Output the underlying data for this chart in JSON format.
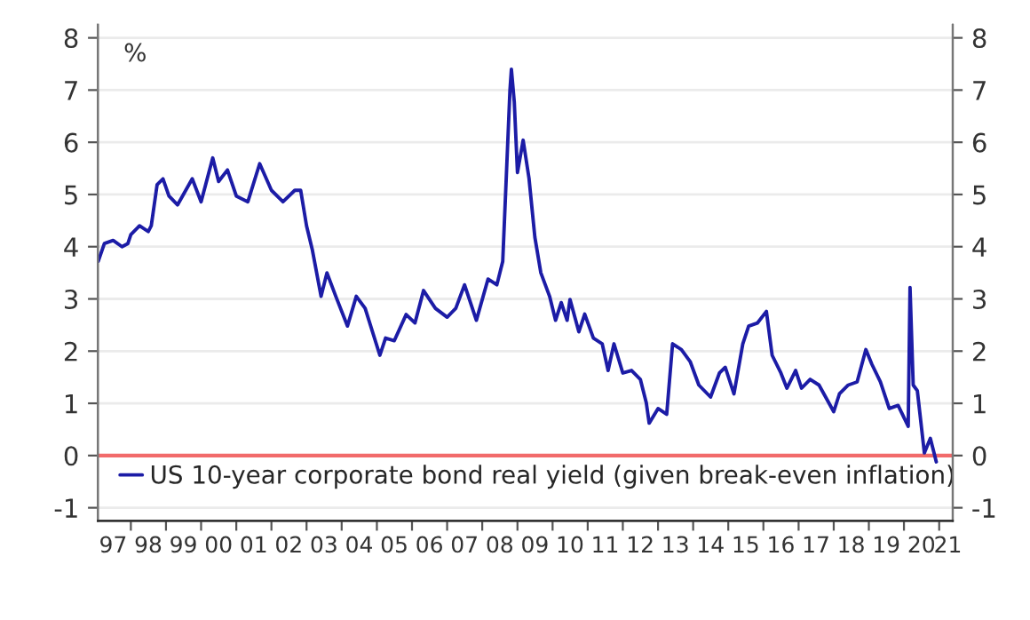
{
  "chart_data": {
    "type": "line",
    "ylabel": "%",
    "x": [
      "1997-01-27",
      "1997-04",
      "1997-07",
      "1997-10",
      "1997-12",
      "1998-01",
      "1998-04",
      "1998-07",
      "1998-08",
      "1998-10",
      "1998-12",
      "1999-02",
      "1999-05",
      "1999-10",
      "2000-01",
      "2000-05",
      "2000-07",
      "2000-10",
      "2001-01",
      "2001-05",
      "2001-09",
      "2002-01",
      "2002-05",
      "2002-09",
      "2002-11",
      "2003-01",
      "2003-03",
      "2003-06",
      "2003-08",
      "2003-11",
      "2004-03",
      "2004-06",
      "2004-09",
      "2005-02",
      "2005-04",
      "2005-07",
      "2005-11",
      "2006-02",
      "2006-05",
      "2006-09",
      "2007-01",
      "2007-04",
      "2007-07",
      "2007-11",
      "2008-03",
      "2008-06",
      "2008-08",
      "2008-10-15",
      "2008-10-30",
      "2008-11-29",
      "2009-01",
      "2009-03",
      "2009-05",
      "2009-07",
      "2009-09",
      "2009-12",
      "2010-02",
      "2010-04",
      "2010-06",
      "2010-07",
      "2010-10",
      "2010-12",
      "2011-03",
      "2011-06",
      "2011-08",
      "2011-10",
      "2012-01",
      "2012-04",
      "2012-07",
      "2012-09",
      "2012-10",
      "2013-01",
      "2013-04",
      "2013-06",
      "2013-09",
      "2013-12",
      "2014-03",
      "2014-07",
      "2014-10",
      "2014-12",
      "2015-03",
      "2015-06",
      "2015-08",
      "2015-11",
      "2016-02",
      "2016-04",
      "2016-07",
      "2016-09",
      "2016-12",
      "2017-02",
      "2017-05",
      "2017-08",
      "2018-01",
      "2018-03",
      "2018-06",
      "2018-09",
      "2018-12",
      "2019-02",
      "2019-05",
      "2019-08",
      "2019-11",
      "2020-02-14",
      "2020-03-04",
      "2020-04-06",
      "2020-05-19",
      "2020-07-31",
      "2020-10-01",
      "2020-12-02"
    ],
    "series": [
      {
        "name": "US 10-year corporate bond real yield (given break-even inflation)",
        "color": "#1c1ca6",
        "values": [
          3.72,
          4.06,
          4.12,
          4.0,
          4.06,
          4.23,
          4.4,
          4.29,
          4.4,
          5.19,
          5.3,
          4.97,
          4.8,
          5.3,
          4.86,
          5.7,
          5.25,
          5.47,
          4.97,
          4.86,
          5.59,
          5.08,
          4.86,
          5.08,
          5.08,
          4.4,
          3.95,
          3.05,
          3.5,
          3.05,
          2.48,
          3.05,
          2.82,
          1.92,
          2.25,
          2.2,
          2.7,
          2.54,
          3.16,
          2.82,
          2.65,
          2.82,
          3.27,
          2.59,
          3.38,
          3.27,
          3.72,
          7.0,
          7.4,
          6.77,
          5.42,
          6.04,
          5.31,
          4.18,
          3.5,
          3.05,
          2.59,
          2.93,
          2.59,
          2.99,
          2.37,
          2.71,
          2.25,
          2.14,
          1.63,
          2.14,
          1.58,
          1.63,
          1.46,
          1.01,
          0.62,
          0.9,
          0.79,
          2.14,
          2.03,
          1.8,
          1.35,
          1.12,
          1.58,
          1.69,
          1.18,
          2.14,
          2.48,
          2.54,
          2.76,
          1.92,
          1.58,
          1.29,
          1.63,
          1.29,
          1.46,
          1.35,
          0.84,
          1.18,
          1.35,
          1.41,
          2.03,
          1.75,
          1.41,
          0.9,
          0.96,
          0.56,
          3.22,
          1.35,
          1.24,
          0.05,
          0.33,
          -0.12
        ]
      }
    ],
    "xlim": [
      "1997-01-23",
      "2021-05-22"
    ],
    "xticks": [
      {
        "value": "1997-07",
        "label": "97"
      },
      {
        "value": "1998-07",
        "label": "98"
      },
      {
        "value": "1999-07",
        "label": "99"
      },
      {
        "value": "2000-07",
        "label": "00"
      },
      {
        "value": "2001-07",
        "label": "01"
      },
      {
        "value": "2002-07",
        "label": "02"
      },
      {
        "value": "2003-07",
        "label": "03"
      },
      {
        "value": "2004-07",
        "label": "04"
      },
      {
        "value": "2005-07",
        "label": "05"
      },
      {
        "value": "2006-07",
        "label": "06"
      },
      {
        "value": "2007-07",
        "label": "07"
      },
      {
        "value": "2008-07",
        "label": "08"
      },
      {
        "value": "2009-07",
        "label": "09"
      },
      {
        "value": "2010-07",
        "label": "10"
      },
      {
        "value": "2011-07",
        "label": "11"
      },
      {
        "value": "2012-07",
        "label": "12"
      },
      {
        "value": "2013-07",
        "label": "13"
      },
      {
        "value": "2014-07",
        "label": "14"
      },
      {
        "value": "2015-07",
        "label": "15"
      },
      {
        "value": "2016-07",
        "label": "16"
      },
      {
        "value": "2017-07",
        "label": "17"
      },
      {
        "value": "2018-07",
        "label": "18"
      },
      {
        "value": "2019-07",
        "label": "19"
      },
      {
        "value": "2020-07",
        "label": "20"
      },
      {
        "value": "2021-04",
        "label": "21"
      },
      {
        "value": "1998",
        "label": null
      },
      {
        "value": "1999",
        "label": null
      },
      {
        "value": "2000",
        "label": null
      },
      {
        "value": "2001",
        "label": null
      },
      {
        "value": "2002",
        "label": null
      },
      {
        "value": "2003",
        "label": null
      },
      {
        "value": "2004",
        "label": null
      },
      {
        "value": "2005",
        "label": null
      },
      {
        "value": "2006",
        "label": null
      },
      {
        "value": "2007",
        "label": null
      },
      {
        "value": "2008",
        "label": null
      },
      {
        "value": "2009",
        "label": null
      },
      {
        "value": "2010",
        "label": null
      },
      {
        "value": "2011",
        "label": null
      },
      {
        "value": "2012",
        "label": null
      },
      {
        "value": "2013",
        "label": null
      },
      {
        "value": "2014",
        "label": null
      },
      {
        "value": "2015",
        "label": null
      },
      {
        "value": "2016",
        "label": null
      },
      {
        "value": "2017",
        "label": null
      },
      {
        "value": "2018",
        "label": null
      },
      {
        "value": "2019",
        "label": null
      },
      {
        "value": "2020",
        "label": null
      },
      {
        "value": "2021",
        "label": null
      }
    ],
    "ylim": [
      -1.25,
      8.25
    ],
    "yticks": [
      -1,
      0,
      1,
      2,
      3,
      4,
      5,
      6,
      7,
      8
    ],
    "y2lim": [
      -1.25,
      8.25
    ],
    "y2ticks": [
      -1,
      0,
      1,
      2,
      3,
      4,
      5,
      6,
      7,
      8
    ],
    "ref_lines": [
      {
        "axis": "y",
        "value": 0,
        "color": "#f26b6b"
      }
    ],
    "grid": "y",
    "legend": "bottom left",
    "line_style": "solid",
    "marker": "none"
  }
}
